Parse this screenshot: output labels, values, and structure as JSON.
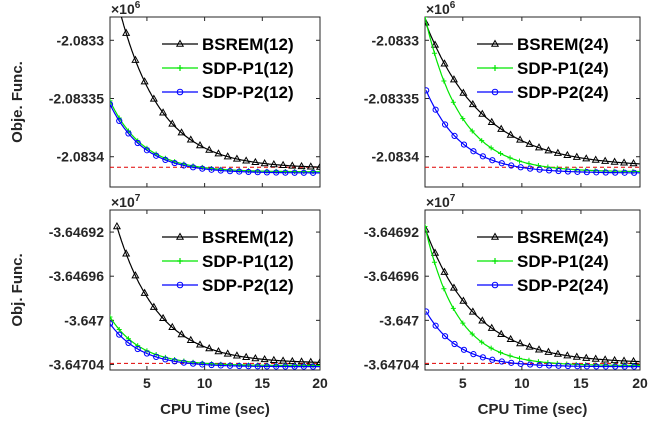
{
  "colors": {
    "bsrem": "#000000",
    "p1": "#00e600",
    "p2": "#0000ff",
    "ref": "#e00000",
    "axis": "#262626"
  },
  "chart_data": [
    {
      "type": "line",
      "exponent_base": "×10",
      "exponent_power": "6",
      "ylabel": "Obje. Func.",
      "xlabel": "",
      "xlim": [
        1.8,
        20
      ],
      "ylim": [
        -2.083426,
        -2.08328
      ],
      "xticks": [
        5,
        10,
        15,
        20
      ],
      "xtick_labels": [
        "",
        "",
        "",
        ""
      ],
      "yticks": [
        -2.0833,
        -2.08335,
        -2.0834
      ],
      "ytick_labels": [
        "-2.0833",
        "-2.08335",
        "-2.0834"
      ],
      "reference_y": -2.083409,
      "series": [
        {
          "name": "BSREM(12)",
          "key": "bsrem",
          "marker": "triangle",
          "x0": 2.4,
          "y0": -2.083265,
          "yinf": -2.08341,
          "tau": 3.6
        },
        {
          "name": "SDP-P1(12)",
          "key": "p1",
          "marker": "plus",
          "x0": 1.8,
          "y0": -2.083352,
          "yinf": -2.083413,
          "tau": 2.9
        },
        {
          "name": "SDP-P2(12)",
          "key": "p2",
          "marker": "circle",
          "x0": 1.8,
          "y0": -2.083355,
          "yinf": -2.083414,
          "tau": 2.9
        }
      ]
    },
    {
      "type": "line",
      "exponent_base": "×10",
      "exponent_power": "6",
      "ylabel": "",
      "xlabel": "",
      "xlim": [
        1.8,
        20
      ],
      "ylim": [
        -2.083426,
        -2.08328
      ],
      "xticks": [
        5,
        10,
        15,
        20
      ],
      "xtick_labels": [
        "",
        "",
        "",
        ""
      ],
      "yticks": [
        -2.0833,
        -2.08335,
        -2.0834
      ],
      "ytick_labels": [
        "-2.0833",
        "-2.08335",
        "-2.0834"
      ],
      "reference_y": -2.083409,
      "series": [
        {
          "name": "BSREM(24)",
          "key": "bsrem",
          "marker": "triangle",
          "x0": 1.85,
          "y0": -2.083285,
          "yinf": -2.083409,
          "tau": 4.8
        },
        {
          "name": "SDP-P1(24)",
          "key": "p1",
          "marker": "plus",
          "x0": 1.8,
          "y0": -2.08328,
          "yinf": -2.083413,
          "tau": 3.0
        },
        {
          "name": "SDP-P2(24)",
          "key": "p2",
          "marker": "circle",
          "x0": 1.9,
          "y0": -2.083343,
          "yinf": -2.083414,
          "tau": 3.0
        }
      ]
    },
    {
      "type": "line",
      "exponent_base": "×10",
      "exponent_power": "7",
      "ylabel": "Obj. Func.",
      "xlabel": "CPU Time (sec)",
      "xlim": [
        1.8,
        20
      ],
      "ylim": [
        -3.647045,
        -3.6469
      ],
      "xticks": [
        5,
        10,
        15,
        20
      ],
      "xtick_labels": [
        "5",
        "10",
        "15",
        "20"
      ],
      "yticks": [
        -3.64692,
        -3.64696,
        -3.647,
        -3.64704
      ],
      "ytick_labels": [
        "-3.64692",
        "-3.64696",
        "-3.647",
        "-3.64704"
      ],
      "reference_y": -3.647039,
      "series": [
        {
          "name": "BSREM(12)",
          "key": "bsrem",
          "marker": "triangle",
          "x0": 2.4,
          "y0": -3.646915,
          "yinf": -3.647039,
          "tau": 3.6
        },
        {
          "name": "SDP-P1(12)",
          "key": "p1",
          "marker": "plus",
          "x0": 1.8,
          "y0": -3.646997,
          "yinf": -3.647041,
          "tau": 2.7
        },
        {
          "name": "SDP-P2(12)",
          "key": "p2",
          "marker": "circle",
          "x0": 1.8,
          "y0": -3.647003,
          "yinf": -3.647042,
          "tau": 2.7
        }
      ]
    },
    {
      "type": "line",
      "exponent_base": "×10",
      "exponent_power": "7",
      "ylabel": "",
      "xlabel": "CPU Time (sec)",
      "xlim": [
        1.8,
        20
      ],
      "ylim": [
        -3.647045,
        -3.6469
      ],
      "xticks": [
        5,
        10,
        15,
        20
      ],
      "xtick_labels": [
        "5",
        "10",
        "15",
        "20"
      ],
      "yticks": [
        -3.64692,
        -3.64696,
        -3.647,
        -3.64704
      ],
      "ytick_labels": [
        "-3.64692",
        "-3.64696",
        "-3.647",
        "-3.64704"
      ],
      "reference_y": -3.647039,
      "series": [
        {
          "name": "BSREM(24)",
          "key": "bsrem",
          "marker": "triangle",
          "x0": 1.85,
          "y0": -3.646918,
          "yinf": -3.647039,
          "tau": 4.2
        },
        {
          "name": "SDP-P1(24)",
          "key": "p1",
          "marker": "plus",
          "x0": 1.8,
          "y0": -3.646915,
          "yinf": -3.647041,
          "tau": 2.7
        },
        {
          "name": "SDP-P2(24)",
          "key": "p2",
          "marker": "circle",
          "x0": 1.9,
          "y0": -3.646992,
          "yinf": -3.647042,
          "tau": 2.7
        }
      ]
    }
  ]
}
